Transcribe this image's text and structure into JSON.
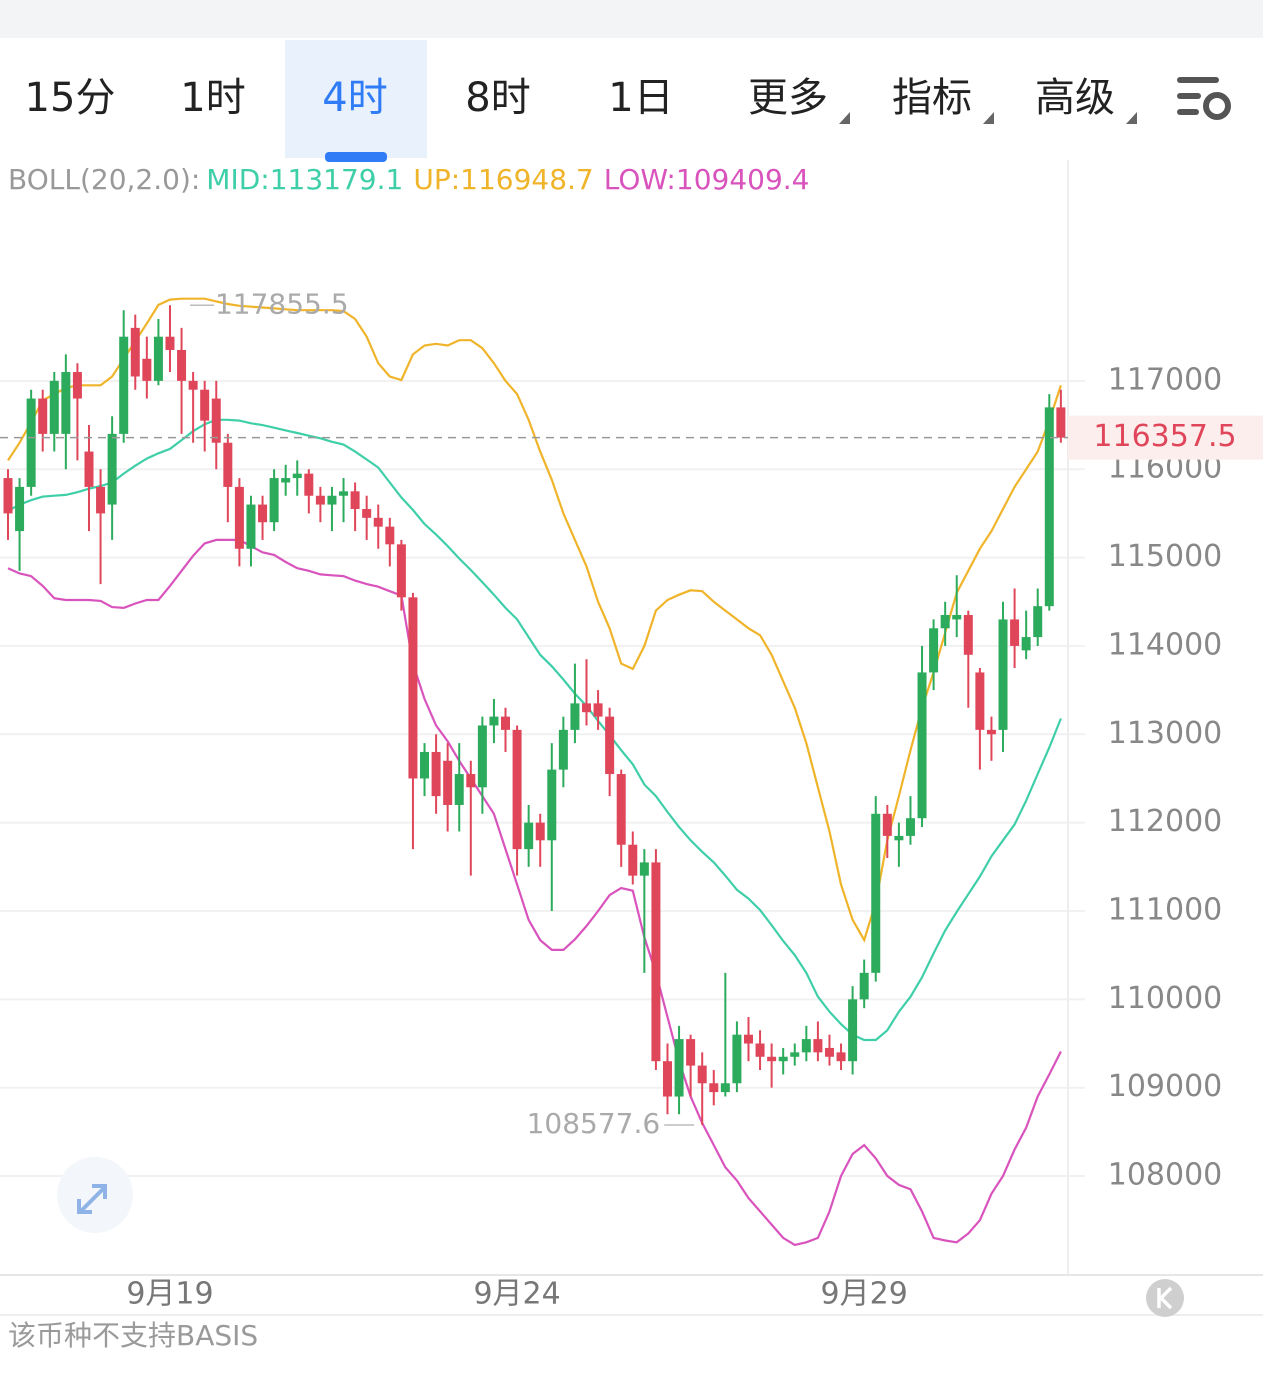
{
  "tabs": [
    "15分",
    "1时",
    "4时",
    "8时",
    "1日"
  ],
  "active_tab": 2,
  "menus": [
    "更多",
    "指标",
    "高级"
  ],
  "footer": "该币种不支持BASIS",
  "chart_data": {
    "type": "candlestick",
    "indicator": "BOLL(20,2.0):",
    "categories": [
      null,
      null,
      null,
      null,
      null,
      null,
      null,
      null,
      null,
      null,
      null,
      null,
      null,
      null,
      "9月19",
      null,
      null,
      null,
      null,
      null,
      null,
      null,
      null,
      null,
      null,
      null,
      null,
      null,
      null,
      null,
      null,
      null,
      null,
      null,
      null,
      null,
      null,
      null,
      null,
      null,
      null,
      null,
      null,
      null,
      "9月24",
      null,
      null,
      null,
      null,
      null,
      null,
      null,
      null,
      null,
      null,
      null,
      null,
      null,
      null,
      null,
      null,
      null,
      null,
      null,
      null,
      null,
      null,
      null,
      null,
      null,
      null,
      null,
      null,
      null,
      "9月29",
      null,
      null,
      null,
      null,
      null,
      null,
      null,
      null,
      null,
      null,
      null,
      null,
      null,
      null,
      null,
      null,
      null
    ],
    "candles": {
      "open": [
        115900,
        115300,
        115800,
        116800,
        116400,
        116400,
        117100,
        116200,
        115800,
        115600,
        116400,
        117600,
        117250,
        117000,
        117500,
        117350,
        117000,
        116900,
        116800,
        116300,
        115800,
        115100,
        115600,
        115400,
        115850,
        115900,
        115950,
        115700,
        115600,
        115700,
        115750,
        115550,
        115450,
        115350,
        115150,
        114550,
        112500,
        112800,
        112700,
        112200,
        112550,
        112400,
        113100,
        113200,
        113050,
        111700,
        112000,
        111800,
        112600,
        113050,
        113350,
        113350,
        113200,
        112550,
        111750,
        111400,
        111550,
        109300,
        108900,
        109550,
        109250,
        109050,
        108950,
        109050,
        109600,
        109500,
        109350,
        109300,
        109350,
        109400,
        109550,
        109450,
        109400,
        109300,
        110000,
        110300,
        112100,
        111800,
        111850,
        112050,
        113700,
        114200,
        114300,
        114350,
        113700,
        113050,
        113050,
        114300,
        113950,
        114100,
        114450,
        116700
      ],
      "high": [
        116000,
        115900,
        116900,
        116900,
        117100,
        117300,
        117200,
        116500,
        116000,
        116600,
        117800,
        117750,
        117500,
        117700,
        117855.5,
        117600,
        117100,
        117000,
        117000,
        116400,
        115900,
        115700,
        115700,
        116000,
        116050,
        116100,
        116000,
        115800,
        115800,
        115900,
        115850,
        115700,
        115600,
        115450,
        115200,
        114600,
        112900,
        113000,
        112900,
        112900,
        112700,
        113200,
        113400,
        113300,
        113100,
        112200,
        112100,
        112900,
        113200,
        113800,
        113850,
        113500,
        113300,
        112600,
        111900,
        111700,
        111700,
        109500,
        109700,
        109600,
        109400,
        109200,
        110300,
        109750,
        109800,
        109650,
        109500,
        109450,
        109500,
        109700,
        109750,
        109600,
        109500,
        110150,
        110450,
        112300,
        112200,
        112000,
        112300,
        114000,
        114300,
        114500,
        114800,
        114400,
        113750,
        113200,
        114500,
        114650,
        114400,
        114650,
        116850,
        116900
      ],
      "low": [
        115200,
        114850,
        115700,
        116200,
        116200,
        116000,
        116100,
        115300,
        114700,
        115200,
        116300,
        116900,
        116800,
        116950,
        117100,
        116400,
        116300,
        116200,
        116000,
        115400,
        114900,
        114900,
        115200,
        115300,
        115700,
        115700,
        115500,
        115400,
        115300,
        115400,
        115300,
        115200,
        115100,
        114900,
        114400,
        111700,
        112300,
        112100,
        111900,
        111900,
        111400,
        112100,
        112900,
        112800,
        111400,
        111500,
        111500,
        111000,
        112400,
        112900,
        113100,
        113050,
        112300,
        111500,
        111300,
        110300,
        109200,
        108700,
        108700,
        108900,
        108577.6,
        108800,
        108900,
        108950,
        109300,
        109200,
        109000,
        109150,
        109250,
        109300,
        109300,
        109250,
        109200,
        109150,
        109900,
        110200,
        111600,
        111500,
        111750,
        111950,
        113500,
        114000,
        114100,
        113300,
        112600,
        112700,
        112800,
        113750,
        113850,
        114000,
        114400,
        116300
      ],
      "close": [
        115500,
        115800,
        116800,
        116400,
        117000,
        117100,
        116800,
        115800,
        115500,
        116400,
        117500,
        117050,
        117000,
        117500,
        117350,
        117000,
        116900,
        116550,
        116300,
        115800,
        115100,
        115600,
        115400,
        115900,
        115900,
        115950,
        115700,
        115600,
        115700,
        115750,
        115550,
        115450,
        115350,
        115150,
        114550,
        112500,
        112800,
        112300,
        112200,
        112550,
        112400,
        113100,
        113200,
        113050,
        111700,
        112000,
        111800,
        112600,
        113050,
        113350,
        113250,
        113200,
        112550,
        111750,
        111400,
        111550,
        109300,
        108900,
        109550,
        109250,
        109050,
        108950,
        109050,
        109600,
        109500,
        109350,
        109300,
        109350,
        109400,
        109550,
        109400,
        109350,
        109300,
        110000,
        110300,
        112100,
        111850,
        111850,
        112050,
        113700,
        114200,
        114350,
        114350,
        113900,
        113050,
        113000,
        114300,
        114000,
        114100,
        114450,
        116700,
        116357.5
      ]
    },
    "up_color": "#2bab5b",
    "down_color": "#e0465a",
    "series": [
      {
        "name": "MID:",
        "color": "#3fcfa8",
        "values": [
          115530,
          115600,
          115650,
          115690,
          115700,
          115710,
          115740,
          115780,
          115810,
          115850,
          115950,
          116040,
          116120,
          116180,
          116230,
          116330,
          116430,
          116510,
          116560,
          116560,
          116550,
          116520,
          116500,
          116470,
          116440,
          116410,
          116380,
          116350,
          116310,
          116280,
          116200,
          116110,
          116020,
          115850,
          115680,
          115540,
          115380,
          115260,
          115130,
          114990,
          114860,
          114720,
          114580,
          114430,
          114300,
          114100,
          113900,
          113770,
          113620,
          113460,
          113320,
          113150,
          112990,
          112820,
          112660,
          112430,
          112300,
          112120,
          111950,
          111800,
          111670,
          111550,
          111400,
          111240,
          111140,
          111010,
          110840,
          110660,
          110500,
          110300,
          110030,
          109860,
          109720,
          109600,
          109540,
          109540,
          109650,
          109860,
          110030,
          110250,
          110520,
          110780,
          110990,
          111190,
          111390,
          111620,
          111800,
          111980,
          112250,
          112550,
          112850,
          113179.1
        ]
      },
      {
        "name": "UP:",
        "color": "#f0b42a",
        "values": [
          116100,
          116300,
          116530,
          116780,
          116850,
          116920,
          116950,
          116950,
          116950,
          117050,
          117250,
          117450,
          117650,
          117860,
          117920,
          117930,
          117930,
          117930,
          117900,
          117870,
          117850,
          117840,
          117830,
          117820,
          117810,
          117800,
          117800,
          117800,
          117800,
          117790,
          117700,
          117500,
          117200,
          117050,
          117010,
          117300,
          117400,
          117420,
          117400,
          117460,
          117460,
          117370,
          117200,
          117000,
          116850,
          116560,
          116200,
          115880,
          115500,
          115200,
          114900,
          114500,
          114200,
          113800,
          113740,
          114000,
          114400,
          114520,
          114580,
          114630,
          114620,
          114500,
          114400,
          114300,
          114200,
          114120,
          113900,
          113600,
          113300,
          112900,
          112400,
          111900,
          111300,
          110900,
          110670,
          111100,
          111800,
          112300,
          112820,
          113300,
          113700,
          114150,
          114600,
          114850,
          115100,
          115300,
          115550,
          115800,
          116000,
          116200,
          116550,
          116948.7
        ]
      },
      {
        "name": "LOW:",
        "color": "#d953bd",
        "values": [
          114880,
          114820,
          114790,
          114680,
          114540,
          114520,
          114520,
          114520,
          114510,
          114440,
          114430,
          114480,
          114520,
          114520,
          114680,
          114850,
          115020,
          115160,
          115200,
          115200,
          115200,
          115130,
          115060,
          115030,
          114950,
          114880,
          114850,
          114810,
          114800,
          114790,
          114740,
          114700,
          114670,
          114620,
          114570,
          113800,
          113400,
          113100,
          112920,
          112700,
          112500,
          112300,
          112100,
          111700,
          111300,
          110900,
          110670,
          110560,
          110560,
          110680,
          110830,
          111000,
          111180,
          111260,
          111230,
          110700,
          110300,
          109800,
          109300,
          108900,
          108600,
          108350,
          108100,
          107950,
          107750,
          107600,
          107450,
          107300,
          107220,
          107250,
          107300,
          107600,
          108000,
          108250,
          108350,
          108200,
          108000,
          107900,
          107850,
          107600,
          107300,
          107270,
          107250,
          107350,
          107500,
          107800,
          108000,
          108300,
          108550,
          108900,
          109150,
          109409.4
        ]
      }
    ],
    "ylim": [
      106880,
      119500
    ],
    "yticks": [
      108000,
      109000,
      110000,
      111000,
      112000,
      113000,
      114000,
      115000,
      116000,
      117000
    ],
    "grid": true
  }
}
